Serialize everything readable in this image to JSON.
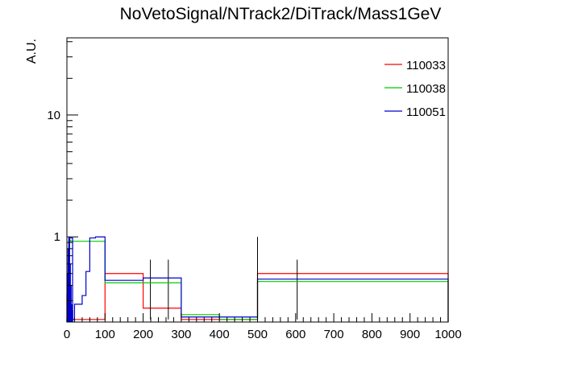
{
  "chart_data": {
    "type": "histogram",
    "title": "NoVetoSignal/NTrack2/DiTrack/Mass1GeV",
    "xlabel": "",
    "ylabel": "A.U.",
    "xlim": [
      0,
      1000
    ],
    "ylim": [
      0.2,
      43
    ],
    "y_scale": "log",
    "x_ticks": [
      "0",
      "100",
      "200",
      "300",
      "400",
      "500",
      "600",
      "700",
      "800",
      "900",
      "1000"
    ],
    "y_ticks": [
      "1",
      "10"
    ],
    "grid": false,
    "legend_position": "top-right",
    "series": [
      {
        "name": "110033",
        "color": "#ff0000",
        "bins": [
          [
            0,
            2,
            0.34
          ],
          [
            2,
            5,
            0.22
          ],
          [
            5,
            10,
            0.21
          ],
          [
            10,
            20,
            0.21
          ],
          [
            20,
            100,
            0.21
          ],
          [
            100,
            200,
            0.5
          ],
          [
            200,
            300,
            0.26
          ],
          [
            300,
            500,
            0.21
          ],
          [
            500,
            1000,
            0.5
          ]
        ],
        "errors": [
          [
            219,
            0.21,
            0.65
          ],
          [
            266,
            0.21,
            0.65
          ],
          [
            604,
            0.21,
            0.65
          ]
        ]
      },
      {
        "name": "110038",
        "color": "#00cc00",
        "bins": [
          [
            0,
            5,
            0.21
          ],
          [
            5,
            10,
            0.94
          ],
          [
            10,
            20,
            0.92
          ],
          [
            20,
            100,
            0.92
          ],
          [
            100,
            200,
            0.42
          ],
          [
            200,
            300,
            0.42
          ],
          [
            300,
            400,
            0.23
          ],
          [
            400,
            500,
            0.21
          ],
          [
            500,
            1000,
            0.43
          ]
        ],
        "errors": []
      },
      {
        "name": "110051",
        "color": "#0000cc",
        "bins": [
          [
            0,
            5,
            0.21
          ],
          [
            5,
            15,
            0.98
          ],
          [
            15,
            20,
            0.21
          ],
          [
            20,
            40,
            0.28
          ],
          [
            40,
            50,
            0.33
          ],
          [
            50,
            60,
            0.52
          ],
          [
            60,
            75,
            0.98
          ],
          [
            75,
            100,
            1.0
          ],
          [
            100,
            200,
            0.44
          ],
          [
            200,
            300,
            0.46
          ],
          [
            300,
            500,
            0.22
          ],
          [
            500,
            1000,
            0.45
          ]
        ],
        "errors": [
          [
            500,
            0.21,
            1.0
          ]
        ]
      }
    ],
    "blue_spikes_near_zero": [
      [
        1,
        0.5
      ],
      [
        3,
        0.8
      ],
      [
        5,
        0.3
      ],
      [
        7,
        1.0
      ],
      [
        9,
        0.6
      ],
      [
        11,
        0.4
      ],
      [
        13,
        0.28
      ],
      [
        15,
        0.25
      ]
    ]
  }
}
